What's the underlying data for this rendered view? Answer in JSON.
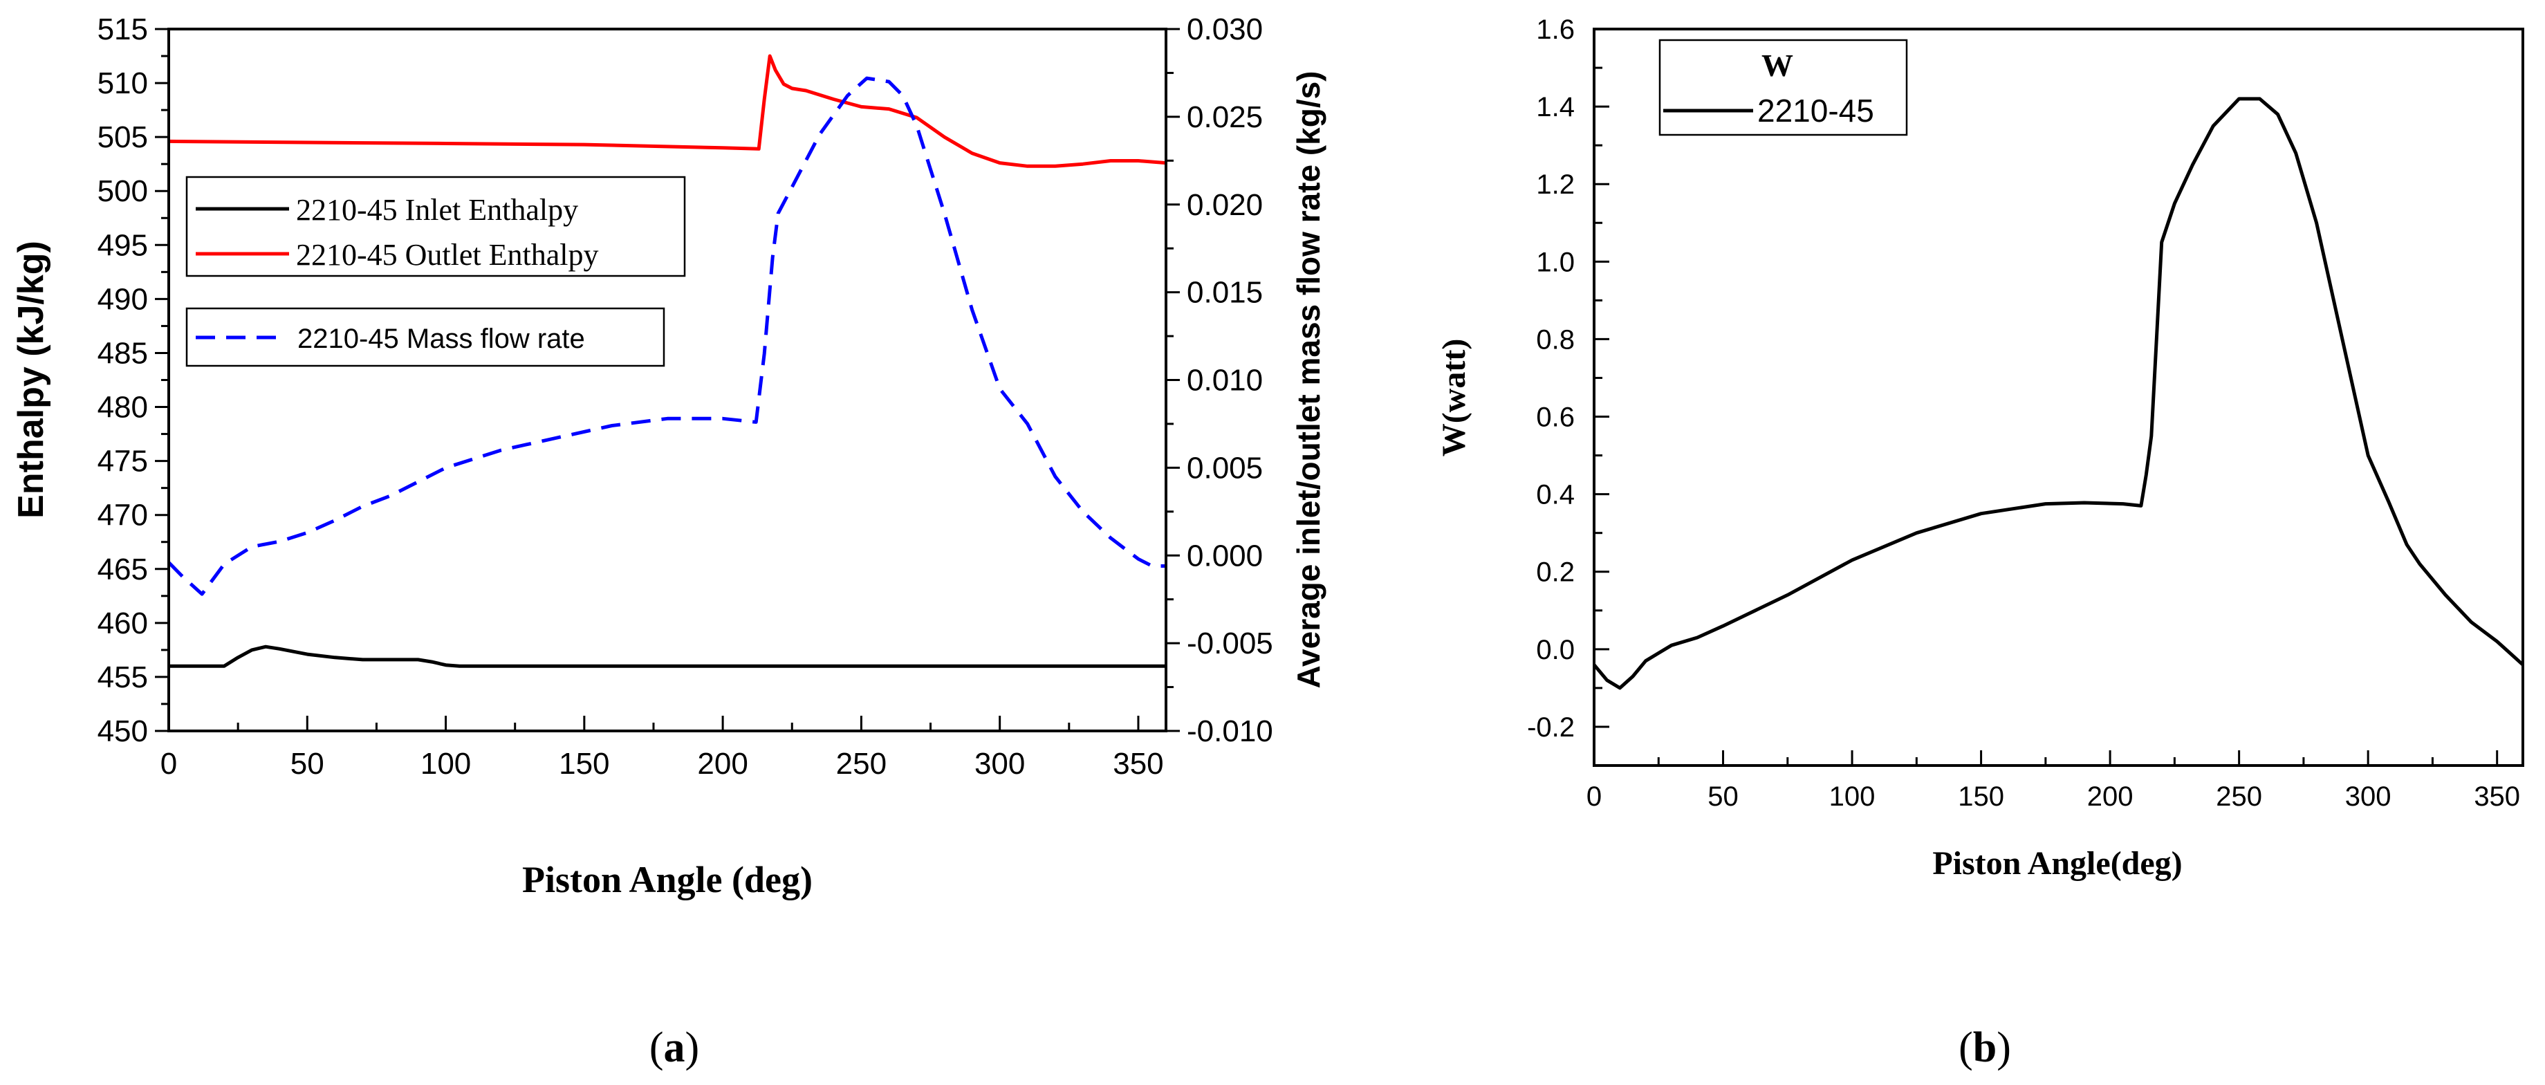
{
  "chart_data": [
    {
      "id": "a",
      "type": "line",
      "panel_label": "(a)",
      "panel_label_bold": "a",
      "xlabel": "Piston Angle (deg)",
      "ylabel": "Enthalpy (kJ/kg)",
      "y2label": "Average inlet/outlet mass flow rate (kg/s)",
      "xlim": [
        0,
        360
      ],
      "ylim": [
        450,
        515
      ],
      "y2lim": [
        -0.01,
        0.03
      ],
      "xticks": [
        0,
        50,
        100,
        150,
        200,
        250,
        300,
        350
      ],
      "yticks": [
        450,
        455,
        460,
        465,
        470,
        475,
        480,
        485,
        490,
        495,
        500,
        505,
        510,
        515
      ],
      "y2ticks": [
        "-0.010",
        "-0.005",
        "0.000",
        "0.005",
        "0.010",
        "0.015",
        "0.020",
        "0.025",
        "0.030"
      ],
      "legend": [
        "2210-45 Inlet Enthalpy",
        "2210-45 Outlet Enthalpy",
        "2210-45  Mass flow rate"
      ],
      "series": [
        {
          "name": "2210-45 Inlet Enthalpy",
          "axis": "left",
          "color": "#000000",
          "dash": "solid",
          "x": [
            0,
            20,
            25,
            30,
            35,
            40,
            50,
            60,
            70,
            80,
            90,
            95,
            100,
            105,
            120,
            200,
            300,
            360
          ],
          "y": [
            456.0,
            456.0,
            456.8,
            457.5,
            457.8,
            457.6,
            457.1,
            456.8,
            456.6,
            456.6,
            456.6,
            456.4,
            456.1,
            456.0,
            456.0,
            456.0,
            456.0,
            456.0
          ]
        },
        {
          "name": "2210-45 Outlet Enthalpy",
          "axis": "left",
          "color": "#ff0000",
          "dash": "solid",
          "x": [
            0,
            50,
            100,
            150,
            200,
            213,
            215,
            217,
            219,
            222,
            225,
            230,
            240,
            250,
            260,
            270,
            280,
            290,
            300,
            310,
            320,
            330,
            340,
            350,
            360
          ],
          "y": [
            504.6,
            504.5,
            504.4,
            504.3,
            504.0,
            503.9,
            508.5,
            512.5,
            511.2,
            509.9,
            509.5,
            509.3,
            508.5,
            507.8,
            507.6,
            506.8,
            505.0,
            503.5,
            502.6,
            502.3,
            502.3,
            502.5,
            502.8,
            502.8,
            502.6
          ]
        },
        {
          "name": "2210-45  Mass flow rate",
          "axis": "right",
          "color": "#0000ff",
          "dash": "dashed",
          "x": [
            0,
            5,
            12,
            20,
            30,
            40,
            50,
            60,
            70,
            80,
            100,
            120,
            140,
            160,
            180,
            200,
            212,
            215,
            218,
            220,
            225,
            235,
            245,
            252,
            260,
            265,
            270,
            280,
            290,
            300,
            310,
            320,
            330,
            340,
            350,
            355,
            360
          ],
          "y": [
            -0.0004,
            -0.0012,
            -0.0022,
            -0.0005,
            0.0005,
            0.0008,
            0.0013,
            0.002,
            0.0028,
            0.0034,
            0.005,
            0.006,
            0.0067,
            0.0074,
            0.0078,
            0.0078,
            0.0076,
            0.0115,
            0.017,
            0.0195,
            0.021,
            0.024,
            0.0262,
            0.0272,
            0.027,
            0.0262,
            0.0245,
            0.0195,
            0.014,
            0.0095,
            0.0075,
            0.0045,
            0.0025,
            0.001,
            -0.0002,
            -0.0006,
            -0.0006
          ]
        }
      ]
    },
    {
      "id": "b",
      "type": "line",
      "panel_label": "(b)",
      "panel_label_bold": "b",
      "xlabel": "Piston Angle(deg)",
      "ylabel": "W(watt)",
      "xlim": [
        0,
        360
      ],
      "ylim": [
        -0.3,
        1.6
      ],
      "xticks": [
        0,
        50,
        100,
        150,
        200,
        250,
        300,
        350
      ],
      "yticks": [
        "-0.2",
        "0.0",
        "0.2",
        "0.4",
        "0.6",
        "0.8",
        "1.0",
        "1.2",
        "1.4",
        "1.6"
      ],
      "legend_title": "W",
      "legend": [
        "2210-45"
      ],
      "series": [
        {
          "name": "2210-45",
          "color": "#000000",
          "dash": "solid",
          "x": [
            0,
            5,
            10,
            15,
            20,
            25,
            30,
            40,
            50,
            75,
            100,
            125,
            150,
            175,
            190,
            205,
            212,
            214,
            216,
            218,
            220,
            225,
            232,
            240,
            250,
            258,
            265,
            272,
            280,
            290,
            300,
            308,
            315,
            320,
            330,
            340,
            350,
            355,
            360
          ],
          "y": [
            -0.04,
            -0.08,
            -0.1,
            -0.07,
            -0.03,
            -0.01,
            0.01,
            0.03,
            0.06,
            0.14,
            0.23,
            0.3,
            0.35,
            0.375,
            0.378,
            0.375,
            0.37,
            0.45,
            0.55,
            0.8,
            1.05,
            1.15,
            1.25,
            1.35,
            1.42,
            1.42,
            1.38,
            1.28,
            1.1,
            0.8,
            0.5,
            0.38,
            0.27,
            0.22,
            0.14,
            0.07,
            0.02,
            -0.01,
            -0.04
          ]
        }
      ]
    }
  ]
}
